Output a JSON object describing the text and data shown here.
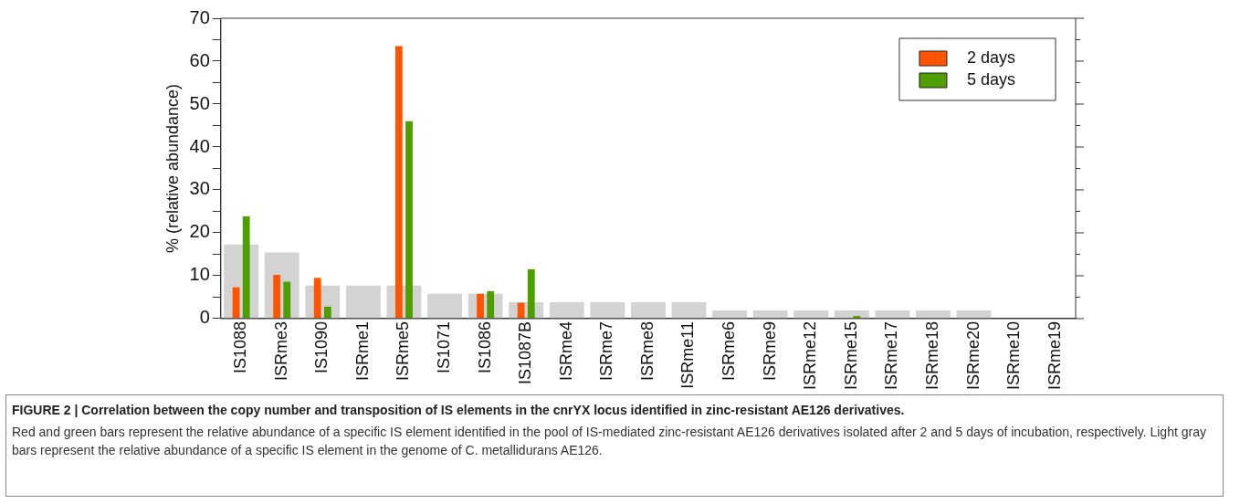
{
  "chart_data": {
    "type": "bar",
    "title": "FIGURE 2 | Correlation between the copy number and transposition of IS elements in the cnrYX locus identified in zinc-resistant AE126 derivatives.",
    "annotations": [
      "Red and green bars represent the relative abundance of a specific IS element identified in the pool of IS-mediated zinc-resistant AE126 derivatives isolated after 2 and 5 days of incubation, respectively. Light gray bars represent the relative abundance of a specific IS element in the genome of C. metallidurans AE126."
    ],
    "ylabel": "% (relative abundance)",
    "categories": [
      "IS1088",
      "ISRme3",
      "IS1090",
      "ISRme1",
      "ISRme5",
      "IS1071",
      "IS1086",
      "IS1087B",
      "ISRme4",
      "ISRme7",
      "ISRme8",
      "ISRme11",
      "ISRme6",
      "ISRme9",
      "ISRme12",
      "ISRme15",
      "ISRme17",
      "ISRme18",
      "ISRme20",
      "ISRme10",
      "ISRme19"
    ],
    "series": [
      {
        "color": "#d3d3d3",
        "values": [
          17.3,
          15.4,
          7.7,
          7.7,
          7.7,
          5.8,
          5.8,
          3.8,
          3.8,
          3.8,
          3.8,
          3.8,
          1.9,
          1.9,
          1.9,
          1.9,
          1.9,
          1.9,
          1.9,
          0,
          0
        ]
      },
      {
        "name": "2 days",
        "color": "#ff5500",
        "values": [
          7.3,
          10.2,
          9.5,
          null,
          63.5,
          null,
          5.8,
          3.7,
          null,
          null,
          null,
          null,
          null,
          null,
          null,
          null,
          null,
          null,
          null,
          null,
          null
        ]
      },
      {
        "name": "5 days",
        "color": "#4f9e00",
        "values": [
          23.8,
          8.6,
          2.8,
          null,
          46,
          null,
          6.4,
          11.5,
          null,
          null,
          null,
          null,
          null,
          null,
          null,
          0.6,
          null,
          null,
          null,
          null,
          null
        ]
      }
    ],
    "ylim": [
      0,
      70
    ],
    "yticks": [
      0,
      {
        "value": 5,
        "label": null
      },
      10,
      {
        "value": 15,
        "label": null
      },
      20,
      {
        "value": 25,
        "label": null
      },
      30,
      {
        "value": 35,
        "label": null
      },
      40,
      {
        "value": 45,
        "label": null
      },
      50,
      {
        "value": 55,
        "label": null
      },
      60,
      {
        "value": 65,
        "label": null
      },
      70
    ],
    "legend": "top right",
    "grid": false
  }
}
